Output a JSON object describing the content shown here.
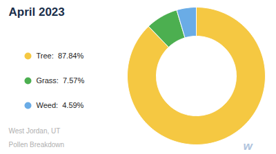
{
  "chart_data": {
    "type": "pie",
    "title": "April 2023",
    "categories": [
      "Tree:  87.84%",
      "Grass:  7.57%",
      "Weed:  4.59%"
    ],
    "values": [
      87.84,
      7.57,
      4.59
    ],
    "colors": [
      "#F5C842",
      "#4CAF50",
      "#6AACE6"
    ],
    "legend": "left",
    "annotations": [
      "West Jordan, UT",
      "Pollen Breakdown",
      "w"
    ]
  }
}
